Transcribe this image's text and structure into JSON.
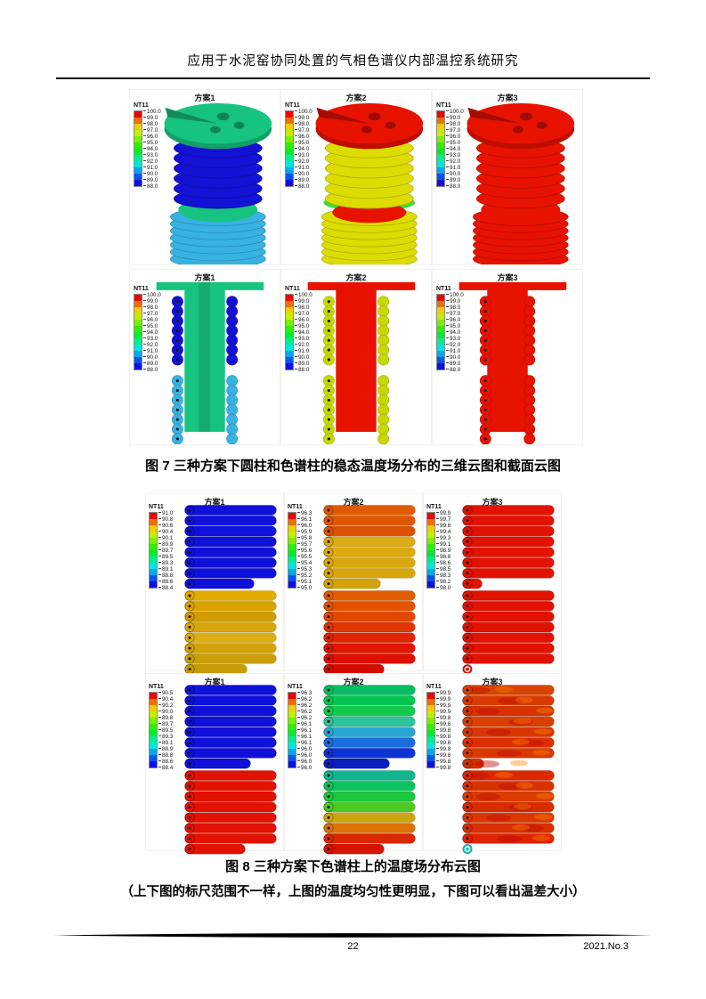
{
  "header": {
    "title": "应用于水泥窑协同处置的气相色谱仪内部温控系统研究"
  },
  "footer": {
    "page_number": "22",
    "issue": "2021.No.3"
  },
  "legend": {
    "title": "NT11",
    "colors": [
      "#ed0500",
      "#ee7100",
      "#eecf00",
      "#c4ee00",
      "#7dee00",
      "#33ee00",
      "#00ee2e",
      "#00ee91",
      "#00e6e6",
      "#00a7ee",
      "#0055ee",
      "#0f0fe0"
    ]
  },
  "fig7": {
    "caption": "图 7  三种方案下圆柱和色谱柱的稳态温度场分布的三维云图和截面云图",
    "legend_values": [
      "100.0",
      "99.0",
      "98.0",
      "97.0",
      "96.0",
      "95.0",
      "94.0",
      "93.0",
      "92.0",
      "91.0",
      "90.0",
      "89.0",
      "88.0"
    ],
    "row1": [
      {
        "title": "方案1",
        "top_disk": "#17c47f",
        "upper": "#1311d4",
        "mid_disk": "#17c47f",
        "lower": "#38b2e2"
      },
      {
        "title": "方案2",
        "top_disk": "#e81200",
        "upper": "#dcdc00",
        "band": "#3eda3e",
        "mid_disk": "#e81200",
        "lower": "#dcdc00"
      },
      {
        "title": "方案3",
        "top_disk": "#e81200",
        "upper": "#e81200",
        "mid_disk": "#e81200",
        "lower": "#e81200"
      }
    ],
    "row2": [
      {
        "title": "方案1",
        "column": "#17c47f",
        "stripe": true,
        "up": "#1311d4",
        "down": "#38b2e2"
      },
      {
        "title": "方案2",
        "column": "#e81200",
        "blotch": true,
        "up": "#c6d800",
        "down": "#c6d800"
      },
      {
        "title": "方案3",
        "column": "#e81200",
        "blotch": true,
        "merged": true,
        "ring_end": true,
        "up": "#e81200",
        "down": "#e81200"
      }
    ]
  },
  "fig8": {
    "caption": "图 8  三种方案下色谱柱上的温度场分布云图",
    "note": "（上下图的标尺范围不一样，上图的温度均匀性更明显，下图可以看出温差大小）",
    "blockA": [
      {
        "title": "方案1",
        "legend_values": [
          "91.0",
          "90.8",
          "90.6",
          "90.4",
          "90.1",
          "89.9",
          "89.7",
          "89.5",
          "89.3",
          "89.1",
          "88.8",
          "88.6",
          "88.4"
        ],
        "top": {
          "tubes": [
            "#0f10da",
            "#0f10da",
            "#0f10da",
            "#0f10da",
            "#0f10da",
            "#0f10da",
            "#0f10da",
            "#0f10da"
          ],
          "last_w": 78
        },
        "bottom": {
          "tubes": [
            "#e2ab00",
            "#d9a200",
            "#d09c04",
            "#d7a70c",
            "#dcae14",
            "#d2a30a",
            "#c99e08",
            "#c79b06"
          ],
          "last_w": 70
        }
      },
      {
        "title": "方案2",
        "legend_values": [
          "96.3",
          "96.1",
          "96.0",
          "95.9",
          "95.8",
          "95.7",
          "95.6",
          "95.5",
          "95.4",
          "95.3",
          "95.2",
          "95.1",
          "95.0"
        ],
        "top": {
          "tubes": [
            "#e05a00",
            "#de5600",
            "#dd5200",
            "#dcaa14",
            "#dcac10",
            "#d9a80e",
            "#d6a50c",
            "#d3a20a"
          ],
          "last_w": 64
        },
        "bottom": {
          "tubes": [
            "#e25c00",
            "#e25200",
            "#e14800",
            "#e03600",
            "#e02400",
            "#df1600",
            "#de0e00",
            "#d60b00"
          ],
          "last_w": 68
        }
      },
      {
        "title": "方案3",
        "legend_values": [
          "99.9",
          "99.7",
          "99.6",
          "99.4",
          "99.3",
          "99.1",
          "98.9",
          "98.8",
          "98.6",
          "98.5",
          "98.3",
          "98.2",
          "98.0"
        ],
        "top": {
          "tubes": [
            "#e11200",
            "#e11200",
            "#e11200",
            "#e11200",
            "#e11200",
            "#e11200",
            "#e11200",
            "#e11200"
          ],
          "last_w": 22
        },
        "bottom": {
          "tubes": [
            "#e11200",
            "#e11200",
            "#e11200",
            "#e11200",
            "#e11200",
            "#e11200",
            "#e11200",
            "#e11200"
          ],
          "cap_only": true,
          "ring_last": true
        }
      }
    ],
    "blockB": [
      {
        "title": "方案1",
        "legend_values": [
          "90.5",
          "90.4",
          "90.2",
          "90.0",
          "89.8",
          "89.7",
          "89.5",
          "89.3",
          "89.1",
          "88.9",
          "88.8",
          "88.6",
          "88.4"
        ],
        "top": {
          "tubes": [
            "#0f10da",
            "#0f10da",
            "#0f10da",
            "#0f10da",
            "#0f10da",
            "#0f10da",
            "#0f10da",
            "#0f10da"
          ],
          "last_w": 74
        },
        "bottom": {
          "tubes": [
            "#e11200",
            "#e11200",
            "#e11200",
            "#e11200",
            "#e11200",
            "#e11200",
            "#e11200",
            "#e11200"
          ],
          "last_w": 68
        }
      },
      {
        "title": "方案2",
        "legend_values": [
          "96.3",
          "96.2",
          "96.2",
          "96.2",
          "96.2",
          "96.1",
          "96.1",
          "96.1",
          "96.1",
          "96.0",
          "96.0",
          "96.0",
          "96.0"
        ],
        "top": {
          "tubes": [
            "#06be62",
            "#06c452",
            "#14ca4e",
            "#2cc49c",
            "#28a6d2",
            "#1a6ede",
            "#0c34d4",
            "#0820c0"
          ],
          "last_w": 74
        },
        "bottom": {
          "tubes": [
            "#12b68e",
            "#0cc25c",
            "#1cc83e",
            "#4cca22",
            "#caa60e",
            "#dc7208",
            "#dc2600",
            "#d61200"
          ],
          "last_w": 68
        }
      },
      {
        "title": "方案3",
        "legend_values": [
          "99.9",
          "99.9",
          "99.9",
          "99.9",
          "99.8",
          "99.8",
          "99.8",
          "99.8",
          "99.8",
          "99.8",
          "99.8",
          "99.8",
          "99.8"
        ],
        "top": {
          "tubes": [
            "#d84400",
            "#d93a00",
            "#d73200",
            "#d94000",
            "#d83600",
            "#dc2e00",
            "#da3800",
            "#d23000"
          ],
          "last_w": 24,
          "mottle": true
        },
        "bottom": {
          "tubes": [
            "#dc2800",
            "#d83200",
            "#da3c00",
            "#d62c00",
            "#dc3600",
            "#d82e00",
            "#de2400",
            "#18c8c8"
          ],
          "cap_only": true,
          "ring_last": true,
          "mottle": true
        }
      }
    ]
  }
}
